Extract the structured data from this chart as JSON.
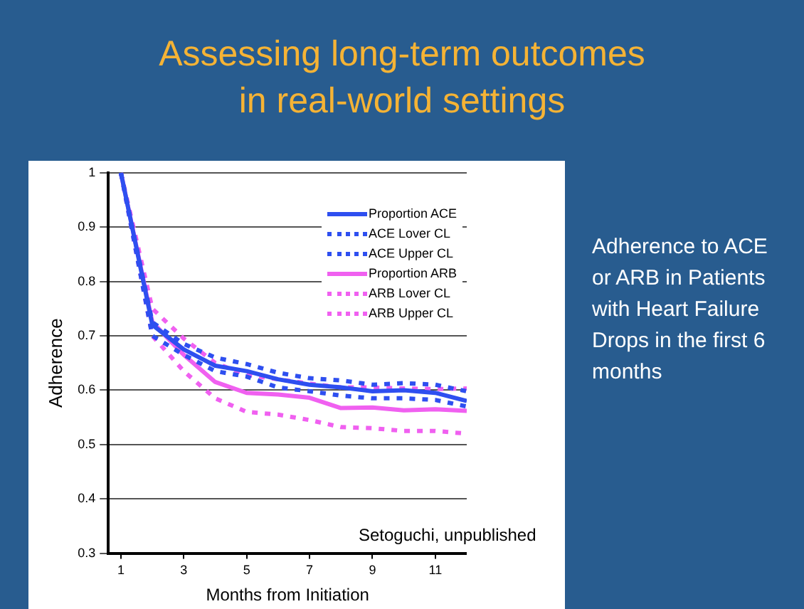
{
  "chart_data": {
    "type": "line",
    "title": "Assessing long-term outcomes in real-world settings",
    "xlabel": "Months from Initiation",
    "ylabel": "Adherence",
    "x": [
      1,
      2,
      3,
      4,
      5,
      6,
      7,
      8,
      9,
      10,
      11,
      12
    ],
    "series": [
      {
        "name": "Proportion ACE",
        "color": "#2e4ff0",
        "line_style": "solid",
        "values": [
          1.0,
          0.72,
          0.675,
          0.645,
          0.635,
          0.62,
          0.61,
          0.605,
          0.598,
          0.6,
          0.595,
          0.58
        ]
      },
      {
        "name": "ACE Lover CL",
        "color": "#2e4ff0",
        "line_style": "dotted",
        "values": [
          1.0,
          0.7,
          0.665,
          0.635,
          0.625,
          0.605,
          0.598,
          0.59,
          0.585,
          0.585,
          0.582,
          0.57
        ]
      },
      {
        "name": "ACE Upper CL",
        "color": "#2e4ff0",
        "line_style": "dotted",
        "values": [
          1.0,
          0.725,
          0.685,
          0.66,
          0.648,
          0.632,
          0.622,
          0.618,
          0.61,
          0.613,
          0.61,
          0.598
        ]
      },
      {
        "name": "Proportion ARB",
        "color": "#f060f0",
        "line_style": "solid",
        "values": [
          1.0,
          0.725,
          0.665,
          0.615,
          0.595,
          0.592,
          0.586,
          0.567,
          0.568,
          0.563,
          0.565,
          0.562
        ]
      },
      {
        "name": "ARB Lover CL",
        "color": "#f060f0",
        "line_style": "dotted",
        "values": [
          1.0,
          0.7,
          0.635,
          0.585,
          0.56,
          0.555,
          0.545,
          0.532,
          0.53,
          0.525,
          0.525,
          0.52
        ]
      },
      {
        "name": "ARB Upper CL",
        "color": "#f060f0",
        "line_style": "dotted",
        "values": [
          1.0,
          0.75,
          0.695,
          0.65,
          0.628,
          0.62,
          0.612,
          0.605,
          0.605,
          0.603,
          0.602,
          0.603
        ]
      }
    ],
    "xlim": [
      0.6,
      12
    ],
    "xticks": [
      1,
      3,
      5,
      7,
      9,
      11
    ],
    "ylim": [
      0.3,
      1
    ],
    "yticks": [
      0.3,
      0.4,
      0.5,
      0.6,
      0.7,
      0.8,
      0.9,
      1
    ],
    "grid": "y",
    "legend": "top right",
    "marker": "none",
    "annotations": [
      "Setoguchi, unpublished",
      "Adherence to ACE or ARB in Patients with Heart Failure Drops in the first 6 months"
    ]
  }
}
